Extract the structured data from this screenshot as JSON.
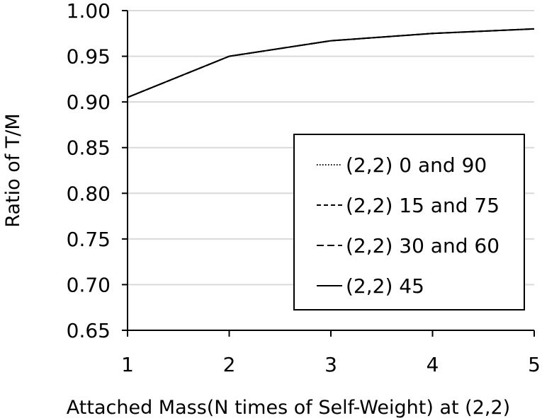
{
  "chart_data": {
    "type": "line",
    "xlabel": "Attached Mass(N times of Self-Weight) at (2,2)",
    "ylabel": "Ratio of  T/M",
    "x": [
      1,
      2,
      3,
      4,
      5
    ],
    "xlim": [
      1,
      5
    ],
    "ylim": [
      0.65,
      1.0
    ],
    "x_ticks": [
      "1",
      "2",
      "3",
      "4",
      "5"
    ],
    "y_ticks": [
      "0.65",
      "0.70",
      "0.75",
      "0.80",
      "0.85",
      "0.90",
      "0.95",
      "1.00"
    ],
    "grid": "horizontal",
    "legend_position": "bottom-right",
    "series": [
      {
        "name": "(2,2) 0 and 90",
        "dash": "dotted",
        "values": [
          0.905,
          0.95,
          0.967,
          0.975,
          0.98
        ]
      },
      {
        "name": "(2,2) 15 and 75",
        "dash": "short-dash",
        "values": [
          0.905,
          0.95,
          0.967,
          0.975,
          0.98
        ]
      },
      {
        "name": "(2,2) 30 and 60",
        "dash": "long-dash",
        "values": [
          0.905,
          0.95,
          0.967,
          0.975,
          0.98
        ]
      },
      {
        "name": "(2,2) 45",
        "dash": "solid",
        "values": [
          0.905,
          0.95,
          0.967,
          0.975,
          0.98
        ]
      }
    ]
  }
}
